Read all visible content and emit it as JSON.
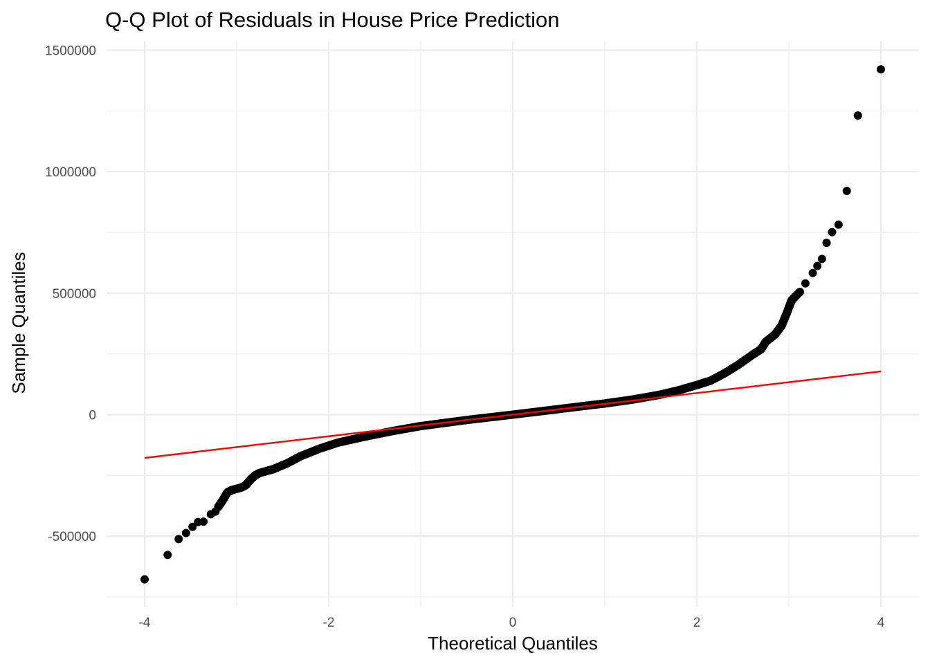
{
  "chart_data": {
    "type": "scatter",
    "title": "Q-Q Plot of Residuals in House Price Prediction",
    "xlabel": "Theoretical Quantiles",
    "ylabel": "Sample Quantiles",
    "xlim": [
      -4.2,
      4.2
    ],
    "ylim": [
      -745000,
      1500000
    ],
    "x_ticks": [
      -4,
      -2,
      0,
      2,
      4
    ],
    "x_tick_labels": [
      "-4",
      "-2",
      "0",
      "2",
      "4"
    ],
    "y_ticks": [
      -500000,
      0,
      500000,
      1000000,
      1500000
    ],
    "y_tick_labels": [
      "-500000",
      "0",
      "500000",
      "1000000",
      "1500000"
    ],
    "x_minor_ticks": [
      -3,
      -1,
      1,
      3
    ],
    "y_minor_ticks": [
      -250000,
      250000,
      750000,
      1250000
    ],
    "grid": true,
    "point_color": "#000000",
    "line_color": "#ff0000",
    "reference_line": {
      "x": [
        -4.0,
        4.0
      ],
      "y": [
        -178000,
        178000
      ]
    },
    "outlier_points": [
      {
        "x": -4.0,
        "y": -678000
      },
      {
        "x": -3.75,
        "y": -577000
      },
      {
        "x": -3.63,
        "y": -512000
      },
      {
        "x": -3.55,
        "y": -487000
      },
      {
        "x": -3.48,
        "y": -462000
      },
      {
        "x": -3.42,
        "y": -442000
      },
      {
        "x": -3.36,
        "y": -440000
      },
      {
        "x": -3.28,
        "y": -410000
      },
      {
        "x": -3.23,
        "y": -399000
      },
      {
        "x": 3.18,
        "y": 540000
      },
      {
        "x": 3.26,
        "y": 583000
      },
      {
        "x": 3.31,
        "y": 612000
      },
      {
        "x": 3.36,
        "y": 641000
      },
      {
        "x": 3.41,
        "y": 707000
      },
      {
        "x": 3.47,
        "y": 751000
      },
      {
        "x": 3.54,
        "y": 782000
      },
      {
        "x": 3.63,
        "y": 921000
      },
      {
        "x": 3.75,
        "y": 1231000
      },
      {
        "x": 4.0,
        "y": 1421000
      }
    ],
    "dense_curve": [
      {
        "x": -3.2,
        "y": -380000
      },
      {
        "x": -3.15,
        "y": -352000
      },
      {
        "x": -3.1,
        "y": -320000
      },
      {
        "x": -3.05,
        "y": -310000
      },
      {
        "x": -2.95,
        "y": -300000
      },
      {
        "x": -2.9,
        "y": -290000
      },
      {
        "x": -2.85,
        "y": -268000
      },
      {
        "x": -2.8,
        "y": -250000
      },
      {
        "x": -2.75,
        "y": -240000
      },
      {
        "x": -2.6,
        "y": -224000
      },
      {
        "x": -2.45,
        "y": -200000
      },
      {
        "x": -2.3,
        "y": -170000
      },
      {
        "x": -2.1,
        "y": -140000
      },
      {
        "x": -1.9,
        "y": -115000
      },
      {
        "x": -1.6,
        "y": -90000
      },
      {
        "x": -1.3,
        "y": -67000
      },
      {
        "x": -1.0,
        "y": -47000
      },
      {
        "x": -0.5,
        "y": -22000
      },
      {
        "x": 0.0,
        "y": 0
      },
      {
        "x": 0.5,
        "y": 23000
      },
      {
        "x": 1.0,
        "y": 46000
      },
      {
        "x": 1.3,
        "y": 62000
      },
      {
        "x": 1.6,
        "y": 82000
      },
      {
        "x": 1.8,
        "y": 100000
      },
      {
        "x": 2.0,
        "y": 122000
      },
      {
        "x": 2.15,
        "y": 140000
      },
      {
        "x": 2.3,
        "y": 170000
      },
      {
        "x": 2.45,
        "y": 205000
      },
      {
        "x": 2.6,
        "y": 245000
      },
      {
        "x": 2.7,
        "y": 270000
      },
      {
        "x": 2.75,
        "y": 300000
      },
      {
        "x": 2.85,
        "y": 330000
      },
      {
        "x": 2.92,
        "y": 365000
      },
      {
        "x": 2.98,
        "y": 420000
      },
      {
        "x": 3.03,
        "y": 470000
      },
      {
        "x": 3.08,
        "y": 490000
      },
      {
        "x": 3.12,
        "y": 505000
      }
    ]
  }
}
